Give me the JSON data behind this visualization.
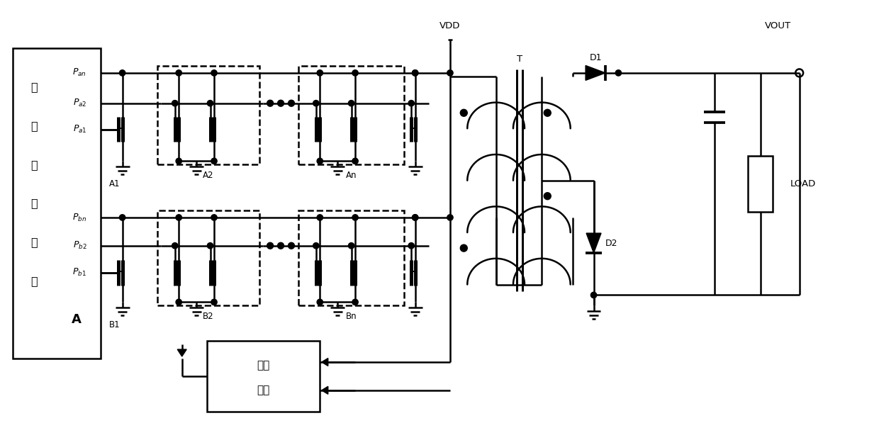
{
  "bg_color": "#ffffff",
  "lc": "#000000",
  "lw": 1.8,
  "fw": 12.4,
  "fh": 5.97,
  "logic_chars": [
    "逻",
    "辑",
    "控",
    "制",
    "单",
    "元"
  ],
  "logic_A": "A",
  "Pan": "$P_{an}$",
  "Pa2": "$P_{a2}$",
  "Pa1": "$P_{a1}$",
  "Pbn": "$P_{bn}$",
  "Pb2": "$P_{b2}$",
  "Pb1": "$P_{b1}$",
  "A1": "A1",
  "A2": "A2",
  "An": "An",
  "B1": "B1",
  "B2": "B2",
  "Bn": "Bn",
  "VDD": "VDD",
  "T": "T",
  "D1": "D1",
  "D2": "D2",
  "VOUT": "VOUT",
  "LOAD": "LOAD",
  "det1": "检测",
  "det2": "单元"
}
